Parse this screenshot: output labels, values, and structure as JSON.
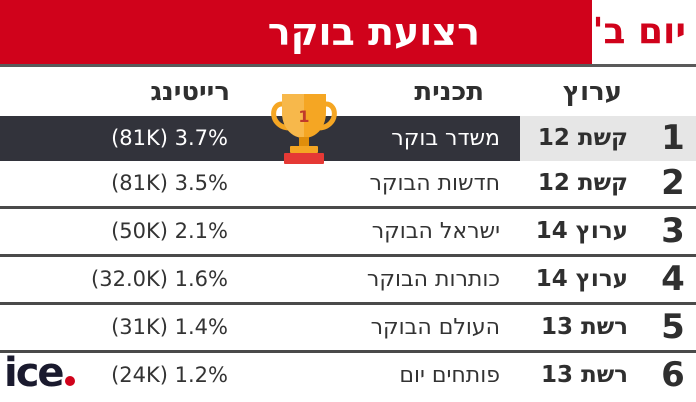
{
  "header": {
    "title": "רצועת בוקר",
    "day": "יום ב'"
  },
  "columns": {
    "channel": "ערוץ",
    "program": "תכנית",
    "rating": "רייטינג"
  },
  "rows": [
    {
      "rank": "1",
      "channel": "קשת 12",
      "program": "משדר בוקר",
      "rating": "(81K) 3.7%"
    },
    {
      "rank": "2",
      "channel": "קשת 12",
      "program": "חדשות הבוקר",
      "rating": "(81K) 3.5%"
    },
    {
      "rank": "3",
      "channel": "ערוץ 14",
      "program": "ישראל הבוקר",
      "rating": "(50K) 2.1%"
    },
    {
      "rank": "4",
      "channel": "ערוץ 14",
      "program": "כותרות הבוקר",
      "rating": "(32.0K) 1.6%"
    },
    {
      "rank": "5",
      "channel": "רשת 13",
      "program": "העולם הבוקר",
      "rating": "(31K) 1.4%"
    },
    {
      "rank": "6",
      "channel": "רשת 13",
      "program": "פותחים יום",
      "rating": "(24K) 1.2%"
    }
  ],
  "trophy": {
    "icon": "trophy-icon",
    "label": "1",
    "color": "#f5a623"
  },
  "logo": {
    "text": "ice",
    "accent": "#d0021b"
  },
  "colors": {
    "header_red": "#d0021b",
    "top_row_dark": "#32333b",
    "top_row_light": "#e6e6e6"
  }
}
